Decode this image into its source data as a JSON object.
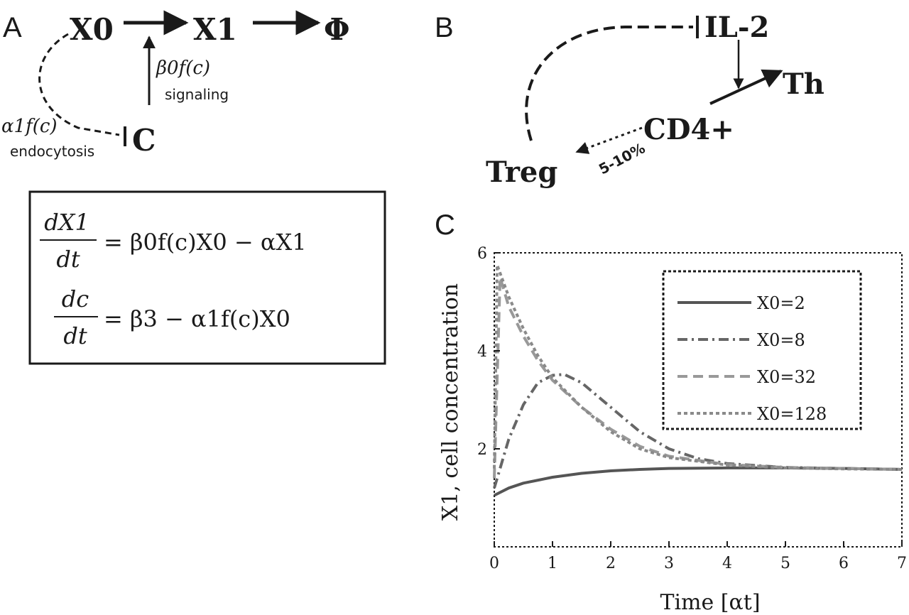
{
  "panel_a": {
    "letter": "A",
    "x0": "X0",
    "x1": "X1",
    "phi": "Φ",
    "c": "C",
    "beta_label": "β0f(c)",
    "signaling": "signaling",
    "alpha_label": "α1f(c)",
    "endocytosis": "endocytosis",
    "eq1_num": "dX1",
    "eq1_den": "dt",
    "eq1_rhs": "= β0f(c)X0 − αX1",
    "eq2_num": "dc",
    "eq2_den": "dt",
    "eq2_rhs": "= β3 − α1f(c)X0"
  },
  "panel_b": {
    "letter": "B",
    "il2": "IL-2",
    "th": "Th",
    "cd4": "CD4+",
    "treg": "Treg",
    "pct": "5-10%"
  },
  "panel_c": {
    "letter": "C"
  },
  "chart_data": {
    "type": "line",
    "xlabel": "Time [αt]",
    "ylabel": "X1, cell concentration",
    "xlim": [
      0,
      7
    ],
    "ylim": [
      0,
      6
    ],
    "xticks": [
      0,
      1,
      2,
      3,
      4,
      5,
      6,
      7
    ],
    "yticks": [
      2,
      4,
      6
    ],
    "legend_position": "top-right",
    "series": [
      {
        "name": "X0=2",
        "style": "solid",
        "color": "#555555",
        "x": [
          0,
          0.25,
          0.5,
          1,
          1.5,
          2,
          2.5,
          3,
          4,
          5,
          6,
          7
        ],
        "y": [
          1.05,
          1.2,
          1.3,
          1.42,
          1.5,
          1.55,
          1.58,
          1.6,
          1.61,
          1.61,
          1.6,
          1.58
        ]
      },
      {
        "name": "X0=8",
        "style": "dashdot",
        "color": "#666666",
        "x": [
          0,
          0.25,
          0.5,
          0.75,
          1,
          1.2,
          1.5,
          2,
          2.5,
          3,
          3.5,
          4,
          5,
          6,
          7
        ],
        "y": [
          1.2,
          2.2,
          2.9,
          3.35,
          3.5,
          3.52,
          3.35,
          2.85,
          2.35,
          2.0,
          1.8,
          1.7,
          1.62,
          1.6,
          1.58
        ]
      },
      {
        "name": "X0=32",
        "style": "dashed",
        "color": "#999999",
        "x": [
          0,
          0.1,
          0.25,
          0.5,
          0.75,
          1,
          1.5,
          2,
          2.5,
          3,
          4,
          5,
          6,
          7
        ],
        "y": [
          1.4,
          5.5,
          4.9,
          4.3,
          3.8,
          3.4,
          2.85,
          2.4,
          2.05,
          1.85,
          1.68,
          1.62,
          1.6,
          1.58
        ]
      },
      {
        "name": "X0=128",
        "style": "dotted",
        "color": "#8a8a8a",
        "x": [
          0,
          0.05,
          0.25,
          0.5,
          0.75,
          1,
          1.5,
          2,
          2.5,
          3,
          4,
          5,
          6,
          7
        ],
        "y": [
          1.6,
          5.75,
          5.1,
          4.45,
          3.9,
          3.45,
          2.85,
          2.35,
          2.0,
          1.82,
          1.67,
          1.61,
          1.59,
          1.58
        ]
      }
    ]
  }
}
